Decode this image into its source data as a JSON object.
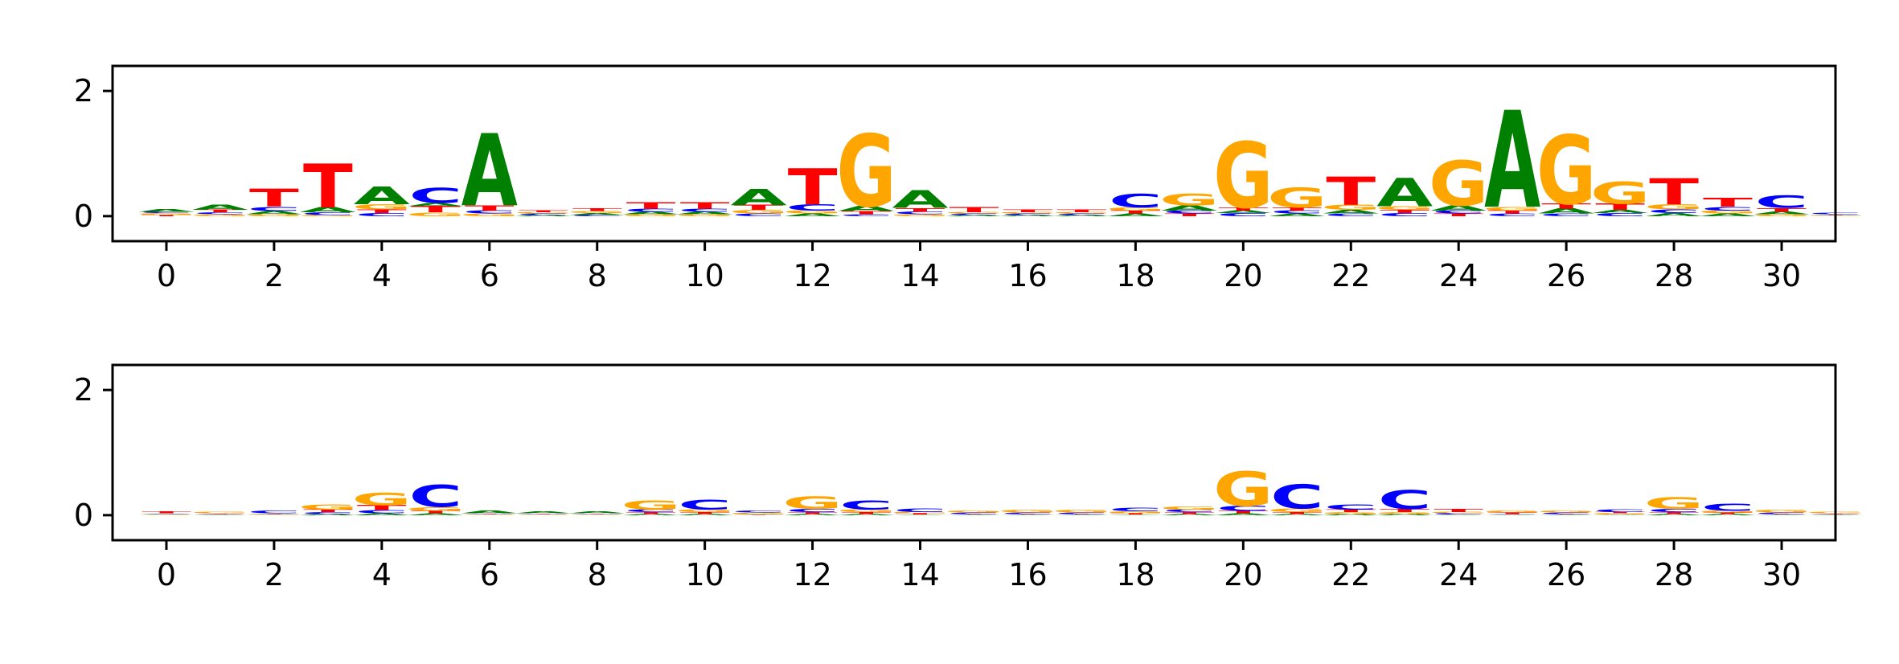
{
  "colors": {
    "A": "#008000",
    "C": "#0000ff",
    "G": "#ffa500",
    "T": "#ff0000"
  },
  "chart_data": [
    {
      "type": "sequence-logo",
      "xlim": [
        -1,
        31
      ],
      "ylim": [
        -0.4,
        2.4
      ],
      "xticks": [
        "0",
        "2",
        "4",
        "6",
        "8",
        "10",
        "12",
        "14",
        "16",
        "18",
        "20",
        "22",
        "24",
        "26",
        "28",
        "30"
      ],
      "yticks": [
        "0",
        "2"
      ],
      "columns": [
        [
          [
            "T",
            0.02
          ],
          [
            "G",
            0.03
          ],
          [
            "C",
            0.02
          ],
          [
            "A",
            0.04
          ]
        ],
        [
          [
            "G",
            0.03
          ],
          [
            "C",
            0.03
          ],
          [
            "T",
            0.04
          ],
          [
            "A",
            0.08
          ]
        ],
        [
          [
            "G",
            0.03
          ],
          [
            "A",
            0.05
          ],
          [
            "C",
            0.07
          ],
          [
            "T",
            0.28
          ]
        ],
        [
          [
            "G",
            0.02
          ],
          [
            "C",
            0.04
          ],
          [
            "A",
            0.08
          ],
          [
            "T",
            0.7
          ]
        ],
        [
          [
            "C",
            0.05
          ],
          [
            "T",
            0.06
          ],
          [
            "G",
            0.08
          ],
          [
            "A",
            0.28
          ]
        ],
        [
          [
            "G",
            0.06
          ],
          [
            "T",
            0.1
          ],
          [
            "A",
            0.05
          ],
          [
            "C",
            0.24
          ]
        ],
        [
          [
            "G",
            0.04
          ],
          [
            "C",
            0.05
          ],
          [
            "T",
            0.08
          ],
          [
            "A",
            1.15
          ]
        ],
        [
          [
            "A",
            0.02
          ],
          [
            "C",
            0.02
          ],
          [
            "G",
            0.02
          ],
          [
            "T",
            0.03
          ]
        ],
        [
          [
            "C",
            0.02
          ],
          [
            "A",
            0.03
          ],
          [
            "G",
            0.03
          ],
          [
            "T",
            0.04
          ]
        ],
        [
          [
            "G",
            0.03
          ],
          [
            "A",
            0.04
          ],
          [
            "C",
            0.05
          ],
          [
            "T",
            0.1
          ]
        ],
        [
          [
            "G",
            0.03
          ],
          [
            "A",
            0.04
          ],
          [
            "C",
            0.05
          ],
          [
            "T",
            0.1
          ]
        ],
        [
          [
            "C",
            0.04
          ],
          [
            "G",
            0.06
          ],
          [
            "T",
            0.08
          ],
          [
            "A",
            0.26
          ]
        ],
        [
          [
            "A",
            0.04
          ],
          [
            "G",
            0.05
          ],
          [
            "C",
            0.1
          ],
          [
            "T",
            0.58
          ]
        ],
        [
          [
            "C",
            0.03
          ],
          [
            "T",
            0.05
          ],
          [
            "A",
            0.08
          ],
          [
            "G",
            1.15
          ]
        ],
        [
          [
            "G",
            0.03
          ],
          [
            "C",
            0.04
          ],
          [
            "T",
            0.06
          ],
          [
            "A",
            0.28
          ]
        ],
        [
          [
            "A",
            0.02
          ],
          [
            "C",
            0.02
          ],
          [
            "G",
            0.02
          ],
          [
            "T",
            0.08
          ]
        ],
        [
          [
            "A",
            0.02
          ],
          [
            "C",
            0.02
          ],
          [
            "G",
            0.02
          ],
          [
            "T",
            0.04
          ]
        ],
        [
          [
            "A",
            0.02
          ],
          [
            "C",
            0.02
          ],
          [
            "G",
            0.02
          ],
          [
            "T",
            0.04
          ]
        ],
        [
          [
            "A",
            0.04
          ],
          [
            "T",
            0.05
          ],
          [
            "G",
            0.05
          ],
          [
            "C",
            0.22
          ]
        ],
        [
          [
            "T",
            0.04
          ],
          [
            "C",
            0.05
          ],
          [
            "A",
            0.08
          ],
          [
            "G",
            0.18
          ]
        ],
        [
          [
            "C",
            0.05
          ],
          [
            "A",
            0.04
          ],
          [
            "T",
            0.05
          ],
          [
            "G",
            1.05
          ]
        ],
        [
          [
            "A",
            0.04
          ],
          [
            "C",
            0.05
          ],
          [
            "T",
            0.05
          ],
          [
            "G",
            0.32
          ]
        ],
        [
          [
            "C",
            0.04
          ],
          [
            "A",
            0.06
          ],
          [
            "G",
            0.08
          ],
          [
            "T",
            0.45
          ]
        ],
        [
          [
            "C",
            0.05
          ],
          [
            "T",
            0.05
          ],
          [
            "G",
            0.06
          ],
          [
            "A",
            0.45
          ]
        ],
        [
          [
            "T",
            0.04
          ],
          [
            "C",
            0.05
          ],
          [
            "A",
            0.08
          ],
          [
            "G",
            0.72
          ]
        ],
        [
          [
            "C",
            0.04
          ],
          [
            "T",
            0.05
          ],
          [
            "G",
            0.06
          ],
          [
            "A",
            1.55
          ]
        ],
        [
          [
            "C",
            0.04
          ],
          [
            "A",
            0.08
          ],
          [
            "T",
            0.08
          ],
          [
            "G",
            1.1
          ]
        ],
        [
          [
            "C",
            0.05
          ],
          [
            "A",
            0.05
          ],
          [
            "T",
            0.1
          ],
          [
            "G",
            0.35
          ]
        ],
        [
          [
            "A",
            0.05
          ],
          [
            "C",
            0.06
          ],
          [
            "G",
            0.08
          ],
          [
            "T",
            0.42
          ]
        ],
        [
          [
            "A",
            0.04
          ],
          [
            "G",
            0.05
          ],
          [
            "C",
            0.06
          ],
          [
            "T",
            0.14
          ]
        ],
        [
          [
            "G",
            0.03
          ],
          [
            "A",
            0.04
          ],
          [
            "T",
            0.06
          ],
          [
            "C",
            0.2
          ]
        ],
        [
          [
            "G",
            0.01
          ],
          [
            "A",
            0.01
          ],
          [
            "T",
            0.01
          ],
          [
            "C",
            0.02
          ]
        ]
      ]
    },
    {
      "type": "sequence-logo",
      "xlim": [
        -1,
        31
      ],
      "ylim": [
        -0.4,
        2.4
      ],
      "xticks": [
        "0",
        "2",
        "4",
        "6",
        "8",
        "10",
        "12",
        "14",
        "16",
        "18",
        "20",
        "22",
        "24",
        "26",
        "28",
        "30"
      ],
      "yticks": [
        "0",
        "2"
      ],
      "columns": [
        [
          [
            "G",
            0.01
          ],
          [
            "C",
            0.01
          ],
          [
            "A",
            0.01
          ],
          [
            "T",
            0.03
          ]
        ],
        [
          [
            "A",
            0.01
          ],
          [
            "C",
            0.01
          ],
          [
            "T",
            0.01
          ],
          [
            "G",
            0.02
          ]
        ],
        [
          [
            "G",
            0.01
          ],
          [
            "T",
            0.01
          ],
          [
            "A",
            0.01
          ],
          [
            "C",
            0.04
          ]
        ],
        [
          [
            "A",
            0.02
          ],
          [
            "C",
            0.03
          ],
          [
            "T",
            0.04
          ],
          [
            "G",
            0.08
          ]
        ],
        [
          [
            "A",
            0.03
          ],
          [
            "C",
            0.05
          ],
          [
            "T",
            0.08
          ],
          [
            "G",
            0.2
          ]
        ],
        [
          [
            "A",
            0.03
          ],
          [
            "T",
            0.04
          ],
          [
            "G",
            0.06
          ],
          [
            "C",
            0.35
          ]
        ],
        [
          [
            "G",
            0.01
          ],
          [
            "C",
            0.01
          ],
          [
            "T",
            0.01
          ],
          [
            "A",
            0.04
          ]
        ],
        [
          [
            "G",
            0.01
          ],
          [
            "C",
            0.01
          ],
          [
            "T",
            0.01
          ],
          [
            "A",
            0.03
          ]
        ],
        [
          [
            "G",
            0.01
          ],
          [
            "C",
            0.01
          ],
          [
            "T",
            0.01
          ],
          [
            "A",
            0.03
          ]
        ],
        [
          [
            "A",
            0.02
          ],
          [
            "T",
            0.03
          ],
          [
            "C",
            0.04
          ],
          [
            "G",
            0.15
          ]
        ],
        [
          [
            "A",
            0.02
          ],
          [
            "T",
            0.03
          ],
          [
            "G",
            0.04
          ],
          [
            "C",
            0.16
          ]
        ],
        [
          [
            "T",
            0.01
          ],
          [
            "A",
            0.01
          ],
          [
            "G",
            0.02
          ],
          [
            "C",
            0.03
          ]
        ],
        [
          [
            "A",
            0.02
          ],
          [
            "T",
            0.03
          ],
          [
            "C",
            0.05
          ],
          [
            "G",
            0.2
          ]
        ],
        [
          [
            "A",
            0.02
          ],
          [
            "T",
            0.03
          ],
          [
            "G",
            0.04
          ],
          [
            "C",
            0.15
          ]
        ],
        [
          [
            "A",
            0.01
          ],
          [
            "T",
            0.02
          ],
          [
            "G",
            0.02
          ],
          [
            "C",
            0.06
          ]
        ],
        [
          [
            "A",
            0.01
          ],
          [
            "T",
            0.01
          ],
          [
            "C",
            0.02
          ],
          [
            "G",
            0.03
          ]
        ],
        [
          [
            "A",
            0.01
          ],
          [
            "T",
            0.01
          ],
          [
            "C",
            0.02
          ],
          [
            "G",
            0.04
          ]
        ],
        [
          [
            "A",
            0.01
          ],
          [
            "T",
            0.01
          ],
          [
            "C",
            0.02
          ],
          [
            "G",
            0.04
          ]
        ],
        [
          [
            "A",
            0.01
          ],
          [
            "T",
            0.02
          ],
          [
            "G",
            0.03
          ],
          [
            "C",
            0.06
          ]
        ],
        [
          [
            "A",
            0.02
          ],
          [
            "T",
            0.03
          ],
          [
            "C",
            0.04
          ],
          [
            "G",
            0.05
          ]
        ],
        [
          [
            "A",
            0.03
          ],
          [
            "T",
            0.04
          ],
          [
            "C",
            0.08
          ],
          [
            "G",
            0.55
          ]
        ],
        [
          [
            "A",
            0.02
          ],
          [
            "T",
            0.03
          ],
          [
            "G",
            0.06
          ],
          [
            "C",
            0.38
          ]
        ],
        [
          [
            "A",
            0.02
          ],
          [
            "G",
            0.03
          ],
          [
            "T",
            0.04
          ],
          [
            "C",
            0.08
          ]
        ],
        [
          [
            "A",
            0.02
          ],
          [
            "G",
            0.03
          ],
          [
            "T",
            0.05
          ],
          [
            "C",
            0.3
          ]
        ],
        [
          [
            "A",
            0.01
          ],
          [
            "C",
            0.02
          ],
          [
            "G",
            0.02
          ],
          [
            "T",
            0.05
          ]
        ],
        [
          [
            "A",
            0.01
          ],
          [
            "C",
            0.01
          ],
          [
            "T",
            0.02
          ],
          [
            "G",
            0.03
          ]
        ],
        [
          [
            "A",
            0.01
          ],
          [
            "T",
            0.01
          ],
          [
            "C",
            0.02
          ],
          [
            "G",
            0.03
          ]
        ],
        [
          [
            "A",
            0.01
          ],
          [
            "G",
            0.02
          ],
          [
            "T",
            0.02
          ],
          [
            "C",
            0.04
          ]
        ],
        [
          [
            "A",
            0.02
          ],
          [
            "T",
            0.03
          ],
          [
            "C",
            0.05
          ],
          [
            "G",
            0.18
          ]
        ],
        [
          [
            "A",
            0.02
          ],
          [
            "T",
            0.02
          ],
          [
            "G",
            0.03
          ],
          [
            "C",
            0.12
          ]
        ],
        [
          [
            "A",
            0.01
          ],
          [
            "T",
            0.01
          ],
          [
            "C",
            0.02
          ],
          [
            "G",
            0.04
          ]
        ],
        [
          [
            "A",
            0.01
          ],
          [
            "T",
            0.01
          ],
          [
            "C",
            0.01
          ],
          [
            "G",
            0.02
          ]
        ]
      ]
    }
  ]
}
